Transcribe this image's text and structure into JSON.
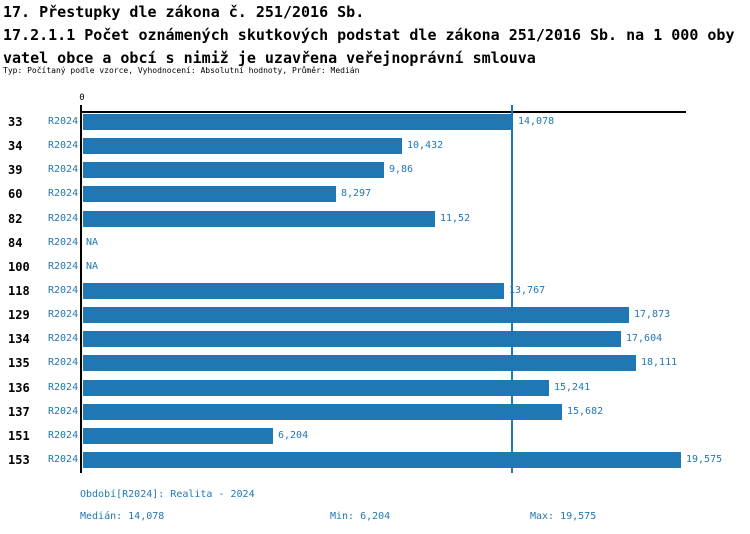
{
  "header": {
    "section_title": "17. Přestupky dle zákona č. 251/2016 Sb.",
    "indicator_title_line1": "17.2.1.1 Počet oznámených skutkových podstat dle zákona 251/2016 Sb. na 1 000 oby",
    "indicator_title_line2": "vatel obce a obcí s nimiž je uzavřena veřejnoprávní smlouva",
    "meta": "Typ: Počítaný podle vzorce, Vyhodnocení: Absolutní hodnoty, Průměr: Medián"
  },
  "colors": {
    "accent_blue": "#1f77b4",
    "axis_black": "#000000",
    "background": "#ffffff"
  },
  "chart_data": {
    "type": "bar",
    "orientation": "horizontal",
    "title": "",
    "xlabel": "",
    "ylabel": "",
    "x_axis_zero_label": "0",
    "xlim": [
      0,
      19.77
    ],
    "grid": false,
    "legend_position": "none",
    "series_label": "R2024",
    "categories": [
      "33",
      "34",
      "39",
      "60",
      "82",
      "84",
      "100",
      "118",
      "129",
      "134",
      "135",
      "136",
      "137",
      "151",
      "153"
    ],
    "values": [
      14.078,
      10.432,
      9.86,
      8.297,
      11.52,
      null,
      null,
      13.767,
      17.873,
      17.604,
      18.111,
      15.241,
      15.682,
      6.204,
      19.575
    ],
    "value_labels": [
      "14,078",
      "10,432",
      "9,86",
      "8,297",
      "11,52",
      "NA",
      "NA",
      "13,767",
      "17,873",
      "17,604",
      "18,111",
      "15,241",
      "15,682",
      "6,204",
      "19,575"
    ],
    "median": 14.078,
    "median_label": "14,078",
    "min": 6.204,
    "max": 19.575
  },
  "footer": {
    "period": "Období[R2024]: Realita - 2024",
    "median": "Medián: 14,078",
    "min": "Min: 6,204",
    "max": "Max: 19,575"
  }
}
